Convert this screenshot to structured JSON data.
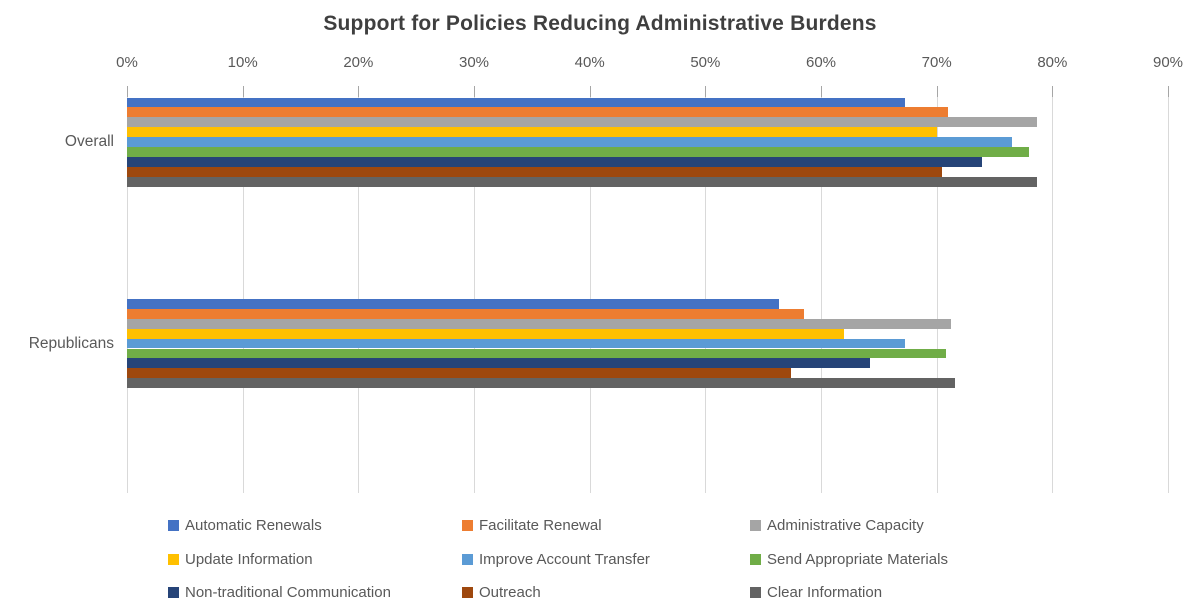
{
  "chart_data": {
    "type": "bar",
    "orientation": "horizontal",
    "title": "Support for Policies Reducing Administrative Burdens",
    "categories": [
      "Overall",
      "Republicans"
    ],
    "series": [
      {
        "name": "Automatic Renewals",
        "color": "#4472C4",
        "values": [
          67.3,
          56.4
        ]
      },
      {
        "name": "Facilitate Renewal",
        "color": "#ED7D31",
        "values": [
          71.0,
          58.5
        ]
      },
      {
        "name": "Administrative Capacity",
        "color": "#A5A5A5",
        "values": [
          78.7,
          71.2
        ]
      },
      {
        "name": "Update Information",
        "color": "#FFC000",
        "values": [
          70.0,
          62.0
        ]
      },
      {
        "name": "Improve Account Transfer",
        "color": "#5B9BD5",
        "values": [
          76.5,
          67.3
        ]
      },
      {
        "name": "Send Appropriate Materials",
        "color": "#70AD47",
        "values": [
          78.0,
          70.8
        ]
      },
      {
        "name": "Non-traditional Communication",
        "color": "#264478",
        "values": [
          73.9,
          64.2
        ]
      },
      {
        "name": "Outreach",
        "color": "#9E480E",
        "values": [
          70.5,
          57.4
        ]
      },
      {
        "name": "Clear Information",
        "color": "#636363",
        "values": [
          78.7,
          71.6
        ]
      }
    ],
    "x_axis": {
      "unit": "%",
      "min": 0,
      "max": 90,
      "tick_labels": [
        "0%",
        "10%",
        "20%",
        "30%",
        "40%",
        "50%",
        "60%",
        "70%",
        "80%",
        "90%"
      ]
    },
    "legend_position": "bottom",
    "grid": true,
    "colors": {
      "title_text": "#3f3f3f",
      "axis_text": "#595959",
      "gridline": "#d9d9d9",
      "background": "#ffffff"
    }
  }
}
